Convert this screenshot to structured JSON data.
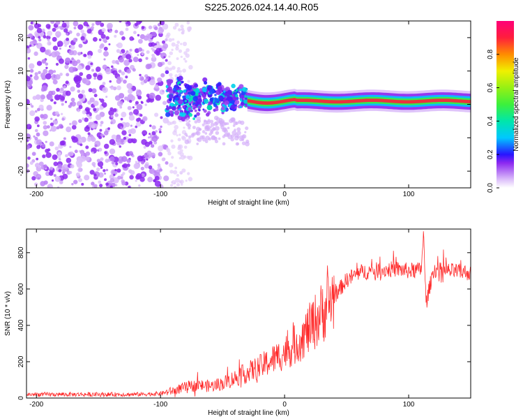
{
  "title": "S225.2026.024.14.40.R05",
  "colors": {
    "spectrogram_base": "#7b2cf0",
    "snr_line": "#ff2a2a",
    "frame": "#000000"
  },
  "chart_data": [
    {
      "type": "heatmap",
      "title": "S225.2026.024.14.40.R05",
      "xlabel": "Height of straight line (km)",
      "ylabel": "Frequency (Hz)",
      "xlim": [
        -208,
        150
      ],
      "ylim": [
        -25,
        25
      ],
      "x_ticks": [
        -200,
        -100,
        0,
        100
      ],
      "y_ticks": [
        -20,
        -10,
        0,
        10,
        20
      ],
      "colorbar": {
        "label": "Normalized spectral amplitude",
        "range": [
          0,
          1
        ],
        "ticks": [
          "0.0",
          "0.2",
          "0.4",
          "0.6",
          "0.8"
        ],
        "tick_values": [
          0.0,
          0.2,
          0.4,
          0.6,
          0.8
        ]
      },
      "regions": [
        {
          "name": "diffuse noise",
          "x_from": -208,
          "x_to": -95,
          "freq_spread_hz": 25,
          "amplitude": 0.05
        },
        {
          "name": "onset cluster",
          "x_from": -95,
          "x_to": -30,
          "freq_center_hz": 2,
          "freq_spread_hz": 6,
          "amplitude": 0.25
        },
        {
          "name": "carrier line",
          "x_from": -30,
          "x_to": 150,
          "freq_center_hz": 1,
          "freq_spread_hz": 1,
          "amplitude": 0.95
        }
      ]
    },
    {
      "type": "line",
      "xlabel": "Height of straight line (km)",
      "ylabel": "SNR (10 * v/v)",
      "xlim": [
        -208,
        150
      ],
      "ylim": [
        0,
        930
      ],
      "x_ticks": [
        -200,
        -100,
        0,
        100
      ],
      "y_ticks": [
        0,
        200,
        400,
        600,
        800
      ],
      "series": [
        {
          "name": "SNR",
          "x": [
            -208,
            -180,
            -150,
            -120,
            -100,
            -90,
            -80,
            -70,
            -60,
            -50,
            -40,
            -30,
            -20,
            -10,
            0,
            10,
            20,
            30,
            40,
            50,
            60,
            70,
            80,
            90,
            100,
            110,
            112,
            114,
            120,
            130,
            140,
            150
          ],
          "y": [
            20,
            20,
            20,
            20,
            25,
            40,
            60,
            70,
            65,
            80,
            110,
            140,
            170,
            210,
            250,
            300,
            380,
            470,
            560,
            650,
            690,
            700,
            705,
            710,
            700,
            705,
            900,
            520,
            705,
            700,
            695,
            690
          ]
        }
      ]
    }
  ]
}
